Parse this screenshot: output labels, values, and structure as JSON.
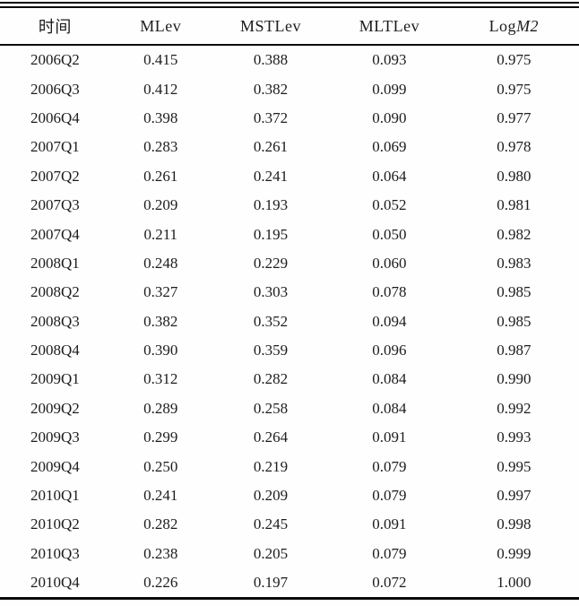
{
  "table": {
    "columns": [
      {
        "key": "time",
        "label": "时间"
      },
      {
        "key": "mlev",
        "label": "MLev"
      },
      {
        "key": "mstlev",
        "label": "MSTLev"
      },
      {
        "key": "mltlev",
        "label": "MLTLev"
      },
      {
        "key": "logm2",
        "label_prefix": "Log",
        "label_italic": "M2"
      }
    ],
    "rows": [
      [
        "2006Q2",
        "0.415",
        "0.388",
        "0.093",
        "0.975"
      ],
      [
        "2006Q3",
        "0.412",
        "0.382",
        "0.099",
        "0.975"
      ],
      [
        "2006Q4",
        "0.398",
        "0.372",
        "0.090",
        "0.977"
      ],
      [
        "2007Q1",
        "0.283",
        "0.261",
        "0.069",
        "0.978"
      ],
      [
        "2007Q2",
        "0.261",
        "0.241",
        "0.064",
        "0.980"
      ],
      [
        "2007Q3",
        "0.209",
        "0.193",
        "0.052",
        "0.981"
      ],
      [
        "2007Q4",
        "0.211",
        "0.195",
        "0.050",
        "0.982"
      ],
      [
        "2008Q1",
        "0.248",
        "0.229",
        "0.060",
        "0.983"
      ],
      [
        "2008Q2",
        "0.327",
        "0.303",
        "0.078",
        "0.985"
      ],
      [
        "2008Q3",
        "0.382",
        "0.352",
        "0.094",
        "0.985"
      ],
      [
        "2008Q4",
        "0.390",
        "0.359",
        "0.096",
        "0.987"
      ],
      [
        "2009Q1",
        "0.312",
        "0.282",
        "0.084",
        "0.990"
      ],
      [
        "2009Q2",
        "0.289",
        "0.258",
        "0.084",
        "0.992"
      ],
      [
        "2009Q3",
        "0.299",
        "0.264",
        "0.091",
        "0.993"
      ],
      [
        "2009Q4",
        "0.250",
        "0.219",
        "0.079",
        "0.995"
      ],
      [
        "2010Q1",
        "0.241",
        "0.209",
        "0.079",
        "0.997"
      ],
      [
        "2010Q2",
        "0.282",
        "0.245",
        "0.091",
        "0.998"
      ],
      [
        "2010Q3",
        "0.238",
        "0.205",
        "0.079",
        "0.999"
      ],
      [
        "2010Q4",
        "0.226",
        "0.197",
        "0.072",
        "1.000"
      ]
    ],
    "colors": {
      "rule": "#0a0a0a",
      "text": "#1c1c1c",
      "background": "#fefefe"
    }
  }
}
